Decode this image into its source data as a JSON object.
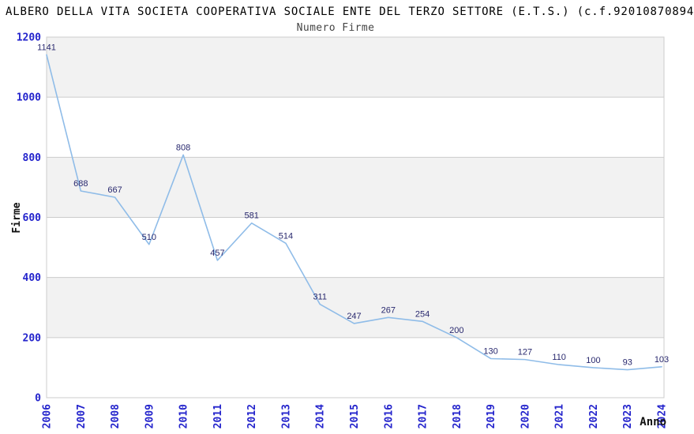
{
  "header": {
    "title": "ALBERO DELLA VITA SOCIETA COOPERATIVA SOCIALE ENTE DEL TERZO SETTORE (E.T.S.) (c.f.92010870894",
    "subtitle": "Numero Firme"
  },
  "chart_data": {
    "type": "line",
    "title": "Numero Firme",
    "xlabel": "Anno",
    "ylabel": "Firme",
    "categories": [
      "2006",
      "2007",
      "2008",
      "2009",
      "2010",
      "2011",
      "2012",
      "2013",
      "2014",
      "2015",
      "2016",
      "2017",
      "2018",
      "2019",
      "2020",
      "2021",
      "2022",
      "2023",
      "2024"
    ],
    "values": [
      1141,
      688,
      667,
      510,
      808,
      457,
      581,
      514,
      311,
      247,
      267,
      254,
      200,
      130,
      127,
      110,
      100,
      93,
      103
    ],
    "ylim": [
      0,
      1200
    ],
    "ytick_step": 200,
    "grid": true,
    "legend": "none",
    "data_labels": true,
    "colors": {
      "line": "#8FBCE8",
      "tick_label": "#2424CC",
      "data_label": "#28286E",
      "band": "#F2F2F2",
      "gridline": "#CCCCCC",
      "plot_border": "#CCCCCC",
      "title": "#000000",
      "subtitle": "#444444",
      "axis_title": "#111111",
      "background": "#FFFFFF"
    }
  }
}
